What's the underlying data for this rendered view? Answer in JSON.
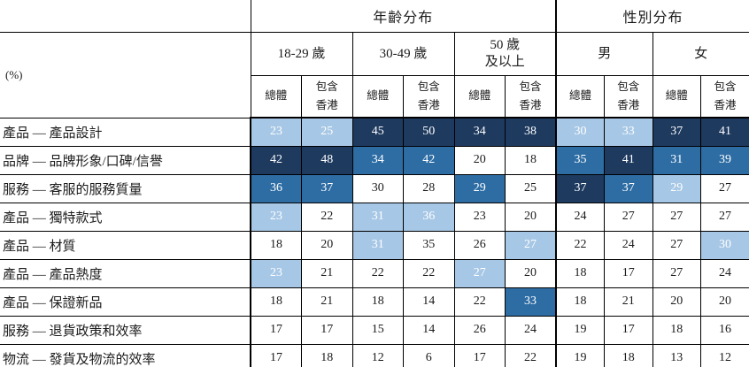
{
  "table": {
    "stub_label": "(%)",
    "colors": {
      "dark": "#1e3a5f",
      "medium": "#2e6da4",
      "light": "#a6c7e5"
    },
    "group_headers": [
      {
        "label": "年齡分布",
        "span": 6
      },
      {
        "label": "性別分布",
        "span": 4
      }
    ],
    "subgroup_headers": [
      {
        "label": "18-29 歲"
      },
      {
        "label": "30-49 歲"
      },
      {
        "label": "50 歲\n及以上"
      },
      {
        "label": "男"
      },
      {
        "label": "女"
      }
    ],
    "col_headers": {
      "total": "總體",
      "incl_hk": "包含\n香港"
    },
    "rows": [
      {
        "label": "產品 — 產品設計",
        "values": [
          23,
          25,
          45,
          50,
          34,
          38,
          30,
          33,
          37,
          41
        ],
        "highlights": [
          "light",
          "light",
          "dark",
          "dark",
          "dark",
          "dark",
          "light",
          "light",
          "dark",
          "dark"
        ]
      },
      {
        "label": "品牌 — 品牌形象/口碑/信譽",
        "values": [
          42,
          48,
          34,
          42,
          20,
          18,
          35,
          41,
          31,
          39
        ],
        "highlights": [
          "dark",
          "dark",
          "medium",
          "medium",
          "none",
          "none",
          "medium",
          "dark",
          "medium",
          "medium"
        ]
      },
      {
        "label": "服務 — 客服的服務質量",
        "values": [
          36,
          37,
          30,
          28,
          29,
          25,
          37,
          37,
          29,
          27
        ],
        "highlights": [
          "medium",
          "medium",
          "none",
          "none",
          "medium",
          "none",
          "dark",
          "medium",
          "light",
          "none"
        ]
      },
      {
        "label": "產品 — 獨特款式",
        "values": [
          23,
          22,
          31,
          36,
          23,
          20,
          24,
          27,
          27,
          27
        ],
        "highlights": [
          "light",
          "none",
          "light",
          "light",
          "none",
          "none",
          "none",
          "none",
          "none",
          "none"
        ]
      },
      {
        "label": "產品 — 材質",
        "values": [
          18,
          20,
          31,
          35,
          26,
          27,
          22,
          24,
          27,
          30
        ],
        "highlights": [
          "none",
          "none",
          "light",
          "none",
          "none",
          "light",
          "none",
          "none",
          "none",
          "light"
        ]
      },
      {
        "label": "產品 — 產品熱度",
        "values": [
          23,
          21,
          22,
          22,
          27,
          20,
          18,
          17,
          27,
          24
        ],
        "highlights": [
          "light",
          "none",
          "none",
          "none",
          "light",
          "none",
          "none",
          "none",
          "none",
          "none"
        ]
      },
      {
        "label": "產品 — 保證新品",
        "values": [
          18,
          21,
          18,
          14,
          22,
          33,
          18,
          21,
          20,
          20
        ],
        "highlights": [
          "none",
          "none",
          "none",
          "none",
          "none",
          "medium",
          "none",
          "none",
          "none",
          "none"
        ]
      },
      {
        "label": "服務 — 退貨政策和效率",
        "values": [
          17,
          17,
          15,
          14,
          26,
          24,
          19,
          17,
          18,
          16
        ],
        "highlights": [
          "none",
          "none",
          "none",
          "none",
          "none",
          "none",
          "none",
          "none",
          "none",
          "none"
        ]
      },
      {
        "label": "物流 — 發貨及物流的效率",
        "values": [
          17,
          18,
          12,
          6,
          17,
          22,
          19,
          18,
          13,
          12
        ],
        "highlights": [
          "none",
          "none",
          "none",
          "none",
          "none",
          "none",
          "none",
          "none",
          "none",
          "none"
        ]
      }
    ]
  }
}
